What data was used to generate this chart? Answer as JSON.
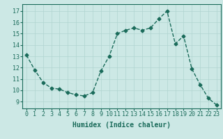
{
  "x": [
    0,
    1,
    2,
    3,
    4,
    5,
    6,
    7,
    8,
    9,
    10,
    11,
    12,
    13,
    14,
    15,
    16,
    17,
    18,
    19,
    20,
    21,
    22,
    23
  ],
  "y": [
    13.1,
    11.8,
    10.7,
    10.2,
    10.1,
    9.8,
    9.6,
    9.5,
    9.8,
    11.7,
    13.0,
    15.0,
    15.3,
    15.5,
    15.3,
    15.5,
    16.3,
    17.0,
    14.1,
    14.8,
    11.9,
    10.5,
    9.3,
    8.7
  ],
  "line_color": "#1a6b5a",
  "marker": "D",
  "marker_size": 2.5,
  "bg_color": "#cce8e5",
  "grid_color": "#b0d4d0",
  "xlabel": "Humidex (Indice chaleur)",
  "xlabel_fontsize": 7,
  "tick_fontsize": 6,
  "ylabel_ticks": [
    9,
    10,
    11,
    12,
    13,
    14,
    15,
    16,
    17
  ],
  "xlim": [
    -0.5,
    23.5
  ],
  "ylim": [
    8.4,
    17.6
  ],
  "linewidth": 1.0,
  "bottom_bar_color": "#4a9e96"
}
